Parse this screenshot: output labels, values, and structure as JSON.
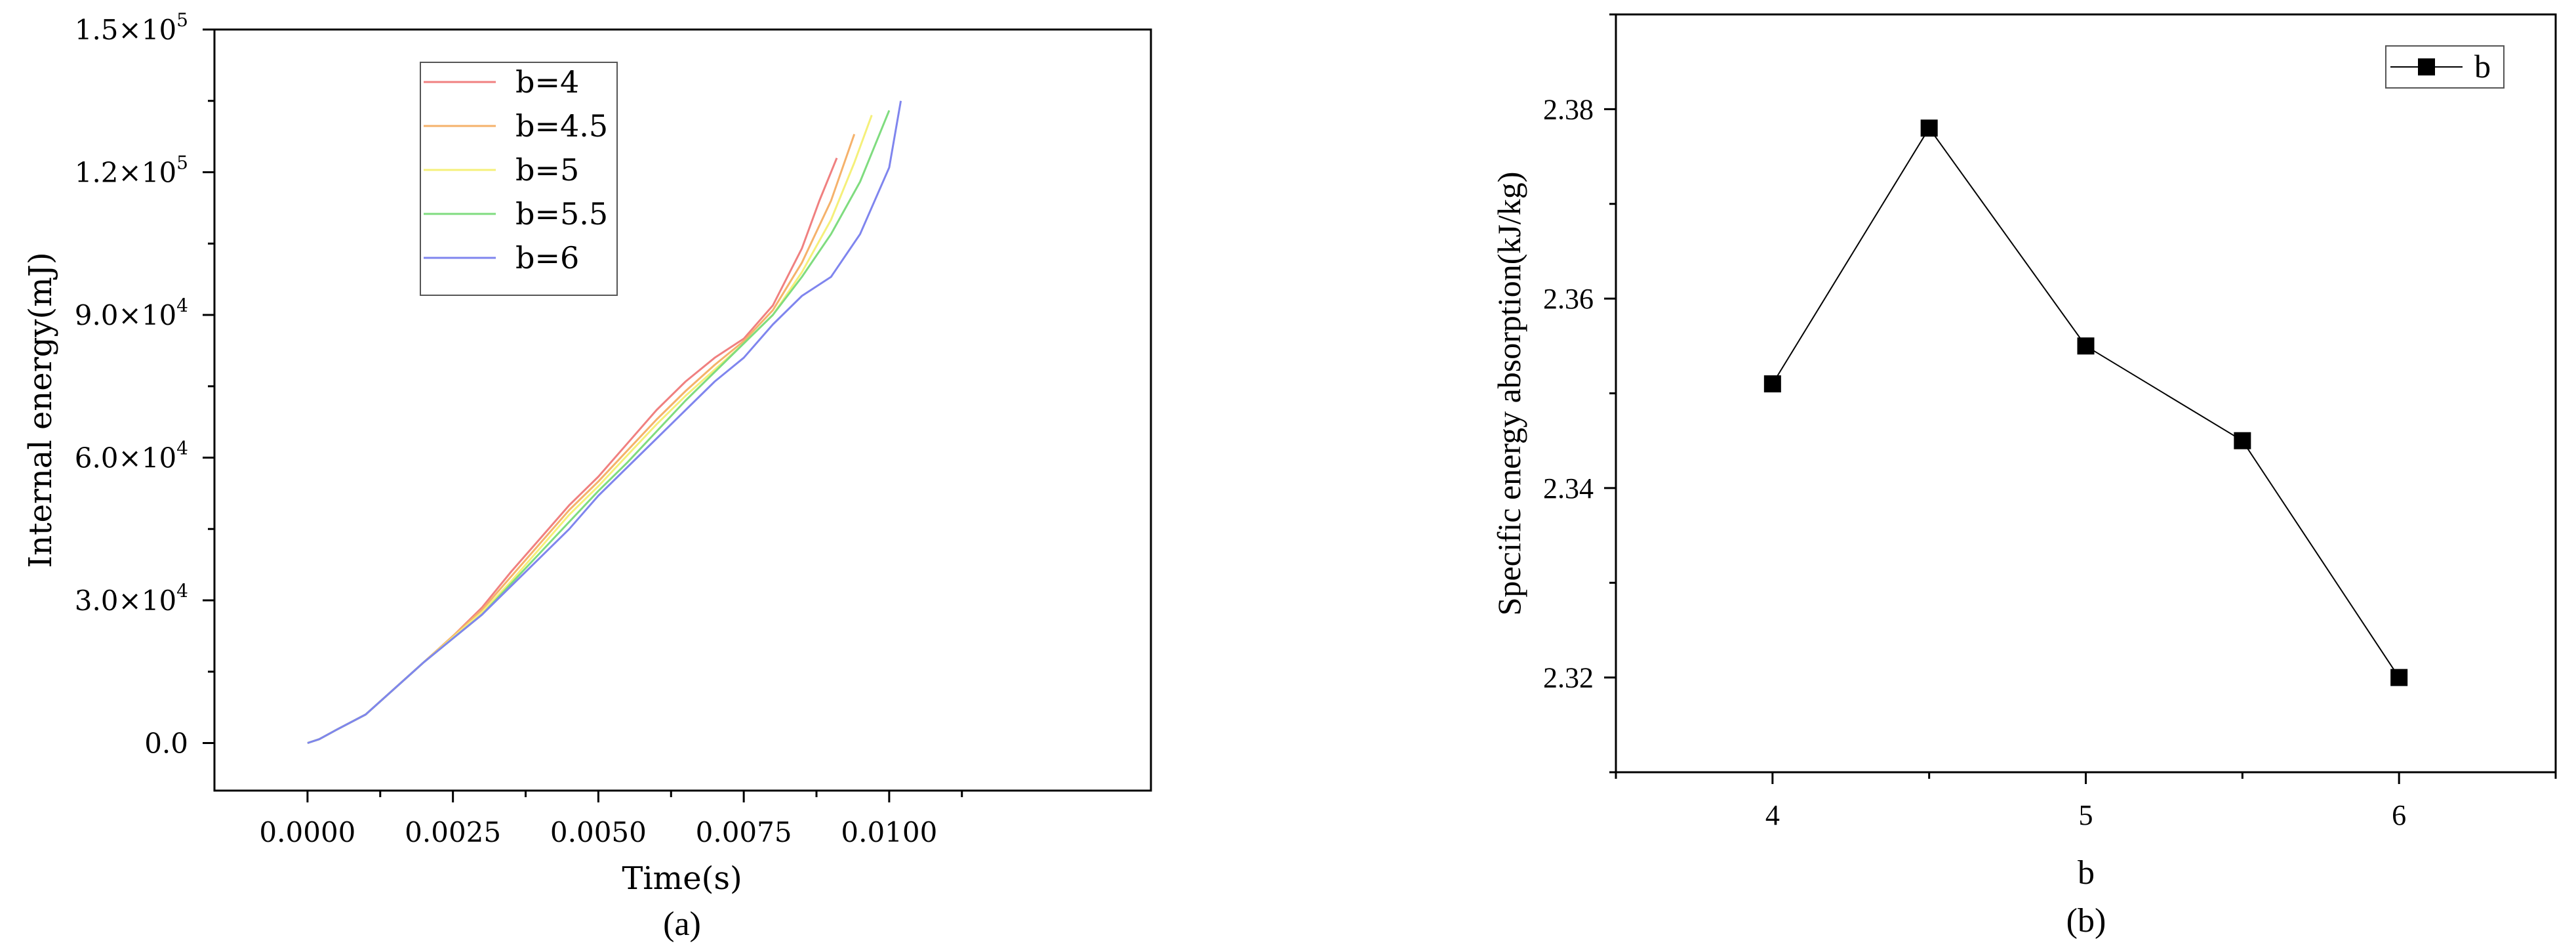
{
  "chart_data": [
    {
      "type": "line",
      "panel_label": "(a)",
      "xlabel": "Time(s)",
      "ylabel": "Internal energy(mJ)",
      "xlim": [
        -0.0016,
        0.0145
      ],
      "ylim": [
        -10000,
        150000
      ],
      "x_ticks": [
        {
          "value": 0,
          "label": "0.0000"
        },
        {
          "value": 0.0025,
          "label": "0.0025"
        },
        {
          "value": 0.005,
          "label": "0.0050"
        },
        {
          "value": 0.0075,
          "label": "0.0075"
        },
        {
          "value": 0.01,
          "label": "0.0100"
        }
      ],
      "y_ticks": [
        {
          "value": 0,
          "label": "0.0"
        },
        {
          "value": 30000,
          "label": "3.0×10",
          "exp": "4"
        },
        {
          "value": 60000,
          "label": "6.0×10",
          "exp": "4"
        },
        {
          "value": 90000,
          "label": "9.0×10",
          "exp": "4"
        },
        {
          "value": 120000,
          "label": "1.2×10",
          "exp": "5"
        },
        {
          "value": 150000,
          "label": "1.5×10",
          "exp": "5"
        }
      ],
      "legend_position": "top-left",
      "grid": false,
      "series": [
        {
          "name": "b=4",
          "color": "#f08080",
          "x": [
            0,
            0.0002,
            0.0005,
            0.001,
            0.0015,
            0.002,
            0.0025,
            0.003,
            0.0035,
            0.004,
            0.0045,
            0.005,
            0.0055,
            0.006,
            0.0065,
            0.007,
            0.0075,
            0.008,
            0.0085,
            0.0088,
            0.0091
          ],
          "y": [
            0,
            800,
            2800,
            6000,
            11500,
            17000,
            22500,
            28500,
            36000,
            43000,
            50000,
            56000,
            63000,
            70000,
            76000,
            81000,
            85000,
            92000,
            104000,
            114000,
            123000
          ]
        },
        {
          "name": "b=4.5",
          "color": "#f5b26b",
          "x": [
            0,
            0.0002,
            0.0005,
            0.001,
            0.0015,
            0.002,
            0.0025,
            0.003,
            0.0035,
            0.004,
            0.0045,
            0.005,
            0.0055,
            0.006,
            0.0065,
            0.007,
            0.0075,
            0.008,
            0.0085,
            0.009,
            0.0094
          ],
          "y": [
            0,
            800,
            2800,
            6000,
            11500,
            17000,
            22500,
            28000,
            35000,
            42000,
            49000,
            55000,
            61500,
            68000,
            74000,
            79500,
            84500,
            91000,
            101000,
            114000,
            128000
          ]
        },
        {
          "name": "b=5",
          "color": "#f5f07a",
          "x": [
            0,
            0.0002,
            0.0005,
            0.001,
            0.0015,
            0.002,
            0.0025,
            0.003,
            0.0035,
            0.004,
            0.0045,
            0.005,
            0.0055,
            0.006,
            0.0065,
            0.007,
            0.0075,
            0.008,
            0.0085,
            0.009,
            0.0094,
            0.0097
          ],
          "y": [
            0,
            800,
            2800,
            6000,
            11500,
            17000,
            22200,
            27500,
            34000,
            41000,
            48000,
            54000,
            60500,
            67000,
            73000,
            78500,
            84000,
            90000,
            99000,
            110000,
            122000,
            132000
          ]
        },
        {
          "name": "b=5.5",
          "color": "#7fdc7f",
          "x": [
            0,
            0.0002,
            0.0005,
            0.001,
            0.0015,
            0.002,
            0.0025,
            0.003,
            0.0035,
            0.004,
            0.0045,
            0.005,
            0.0055,
            0.006,
            0.0065,
            0.007,
            0.0075,
            0.008,
            0.0085,
            0.009,
            0.0095,
            0.01
          ],
          "y": [
            0,
            800,
            2800,
            6000,
            11500,
            17000,
            22000,
            27000,
            33500,
            40000,
            46500,
            53000,
            59000,
            65500,
            72000,
            78000,
            84000,
            90000,
            98000,
            107000,
            118000,
            133000
          ]
        },
        {
          "name": "b=6",
          "color": "#7f85ee",
          "x": [
            0,
            0.0002,
            0.0005,
            0.001,
            0.0015,
            0.002,
            0.0025,
            0.003,
            0.0035,
            0.004,
            0.0045,
            0.005,
            0.0055,
            0.006,
            0.0065,
            0.007,
            0.0075,
            0.008,
            0.0085,
            0.009,
            0.0095,
            0.01,
            0.0102
          ],
          "y": [
            0,
            800,
            2800,
            6000,
            11500,
            17000,
            22000,
            27000,
            33000,
            39000,
            45000,
            52000,
            58000,
            64000,
            70000,
            76000,
            81000,
            88000,
            94000,
            98000,
            107000,
            121000,
            135000
          ]
        }
      ]
    },
    {
      "type": "line",
      "panel_label": "(b)",
      "xlabel": "b",
      "ylabel": "Specific energy absorption(kJ/kg)",
      "xlim": [
        3.5,
        6.5
      ],
      "ylim": [
        2.31,
        2.39
      ],
      "x_ticks": [
        {
          "value": 4,
          "label": "4"
        },
        {
          "value": 5,
          "label": "5"
        },
        {
          "value": 6,
          "label": "6"
        }
      ],
      "y_ticks": [
        {
          "value": 2.32,
          "label": "2.32"
        },
        {
          "value": 2.34,
          "label": "2.34"
        },
        {
          "value": 2.36,
          "label": "2.36"
        },
        {
          "value": 2.38,
          "label": "2.38"
        }
      ],
      "legend_position": "top-right",
      "grid": false,
      "series": [
        {
          "name": "b",
          "color": "#000000",
          "marker": "square",
          "x": [
            4,
            4.5,
            5,
            5.5,
            6
          ],
          "y": [
            2.351,
            2.378,
            2.355,
            2.345,
            2.32
          ]
        }
      ]
    }
  ]
}
